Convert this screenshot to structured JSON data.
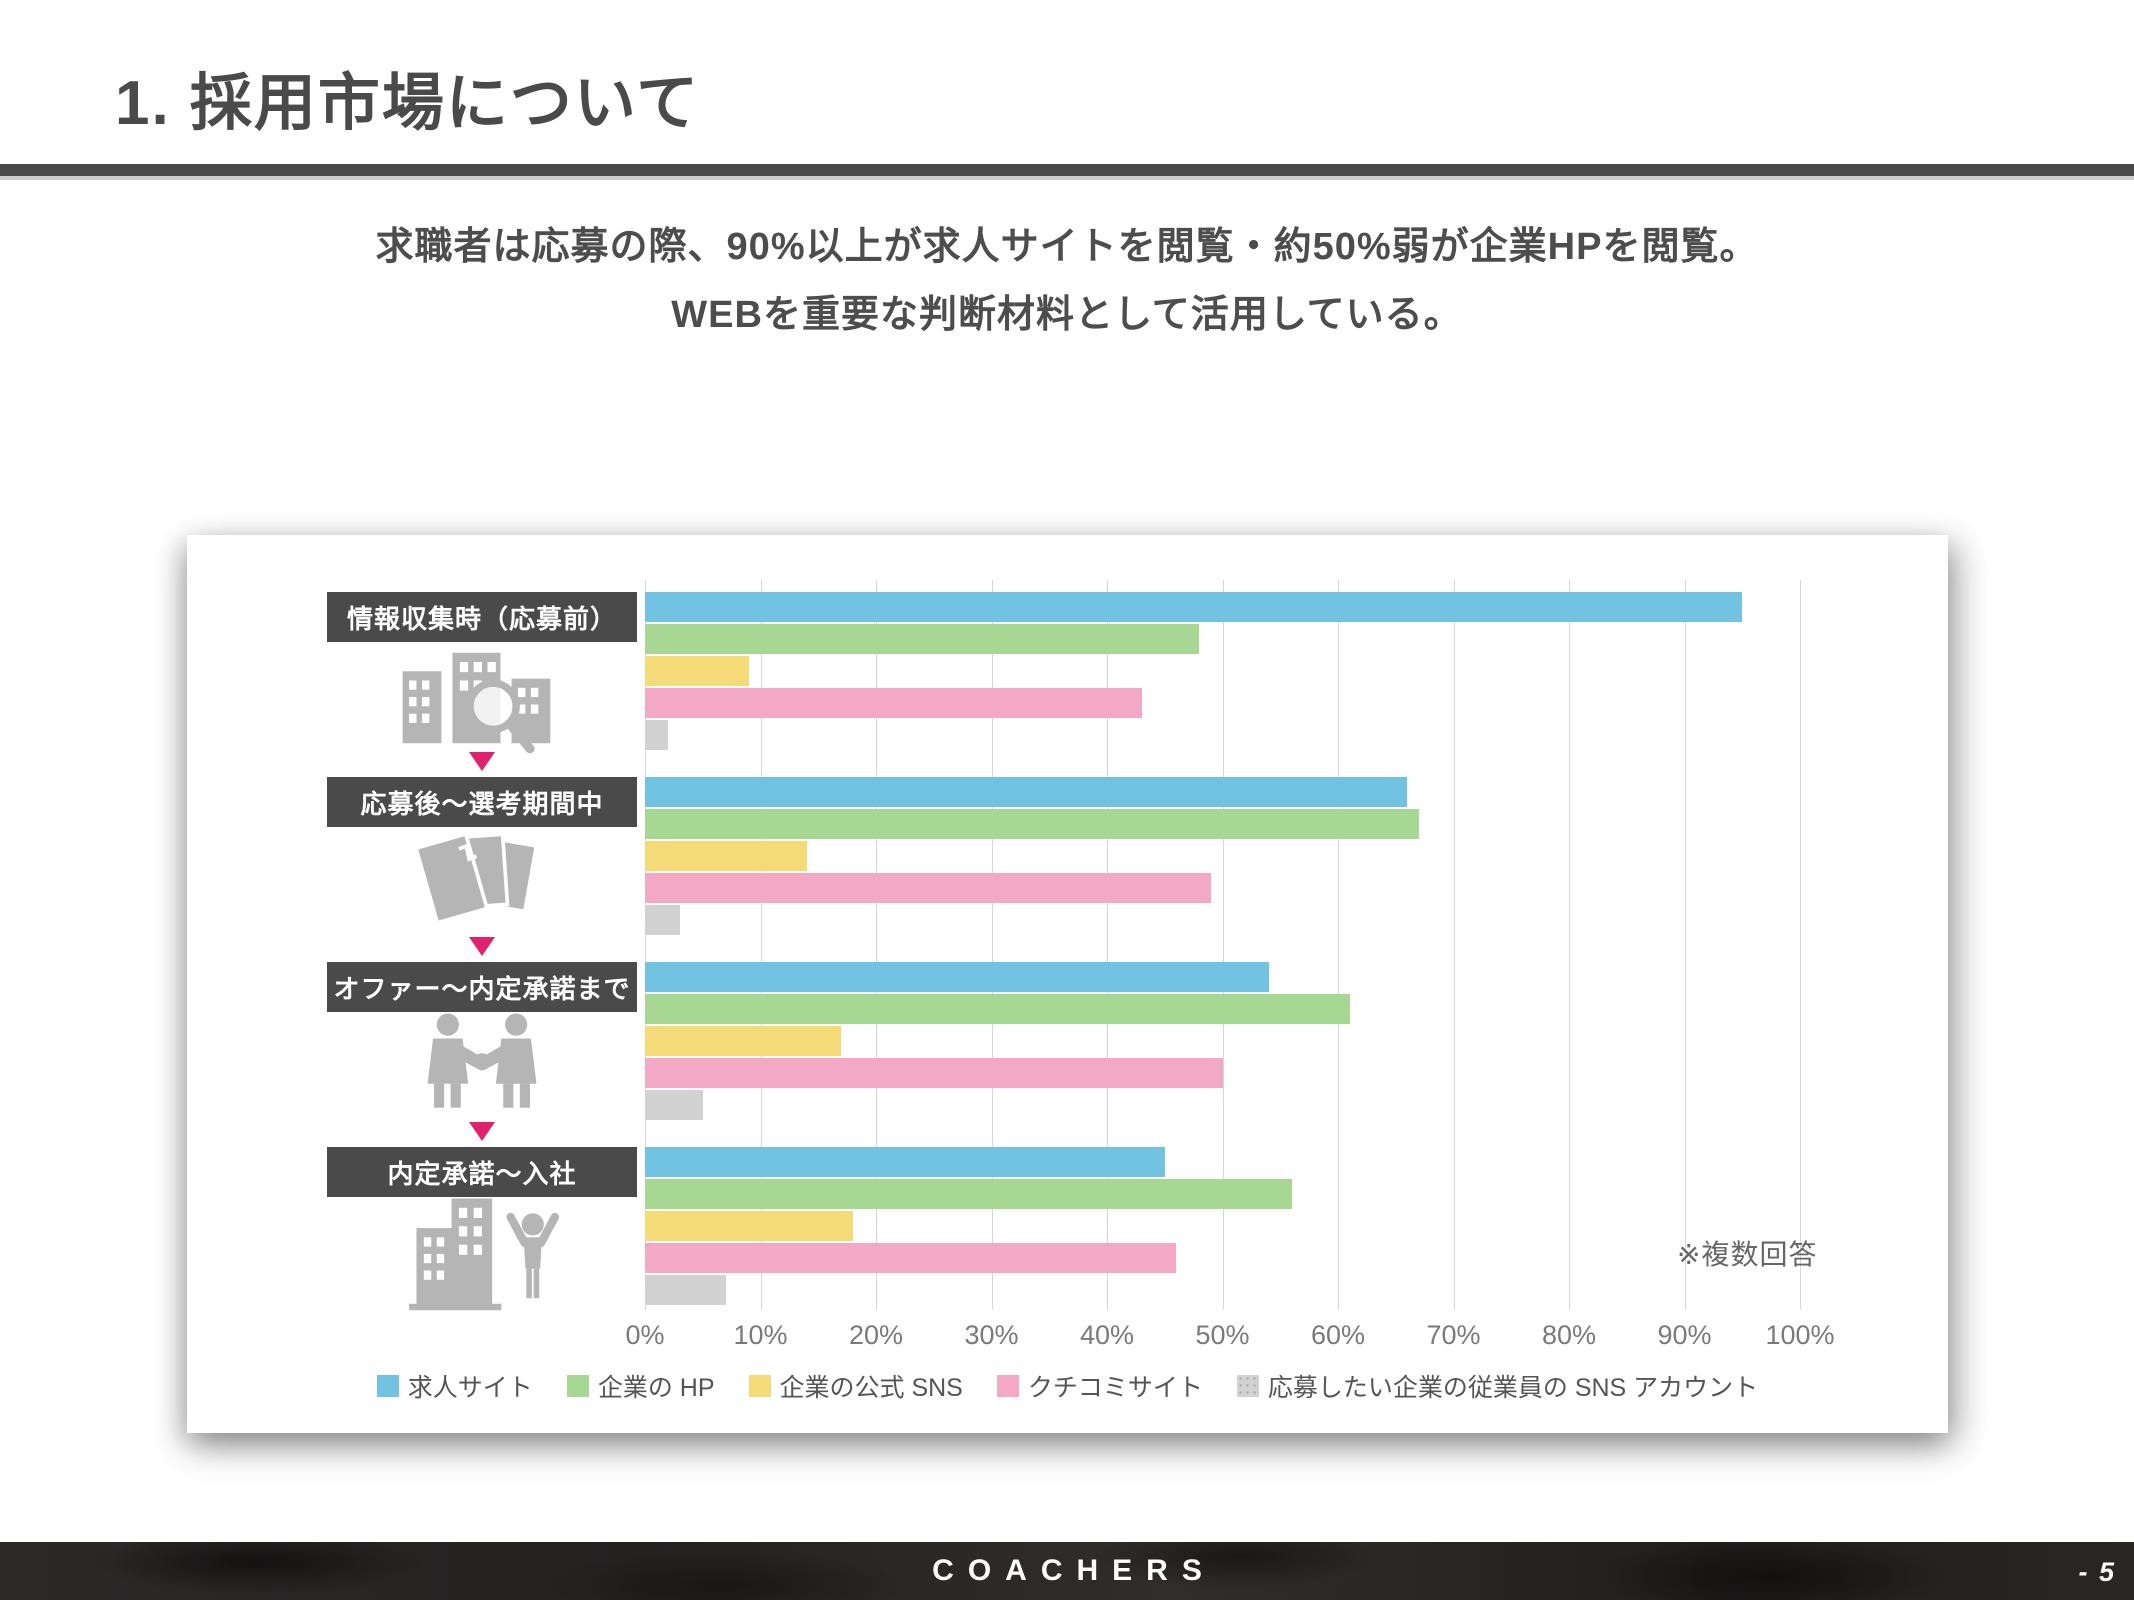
{
  "header": {
    "title": "1. 採用市場について"
  },
  "subtitle": {
    "line1": "求職者は応募の際、90%以上が求人サイトを閲覧・約50%弱が企業HPを閲覧。",
    "line2": "WEBを重要な判断材料として活用している。"
  },
  "chart_data": {
    "type": "bar",
    "orientation": "horizontal",
    "title": "",
    "xlabel": "",
    "ylabel": "",
    "xlim": [
      0,
      100
    ],
    "grid": true,
    "legend_position": "bottom",
    "note": "※複数回答",
    "axis_ticks": [
      "0%",
      "10%",
      "20%",
      "30%",
      "40%",
      "50%",
      "60%",
      "70%",
      "80%",
      "90%",
      "100%"
    ],
    "categories": [
      {
        "label": "情報収集時（応募前）",
        "icon": "buildings-search-icon"
      },
      {
        "label": "応募後～選考期間中",
        "icon": "documents-icon"
      },
      {
        "label": "オファー～内定承諾まで",
        "icon": "handshake-icon"
      },
      {
        "label": "内定承諾～入社",
        "icon": "building-person-icon"
      }
    ],
    "series": [
      {
        "name": "求人サイト",
        "color": "#72c3e1",
        "values": [
          95,
          66,
          54,
          45
        ]
      },
      {
        "name": "企業の HP",
        "color": "#a6d893",
        "values": [
          48,
          67,
          61,
          56
        ]
      },
      {
        "name": "企業の公式 SNS",
        "color": "#f4db78",
        "values": [
          9,
          14,
          17,
          18
        ]
      },
      {
        "name": "クチコミサイト",
        "color": "#f3a9c6",
        "values": [
          43,
          49,
          50,
          46
        ]
      },
      {
        "name": "応募したい企業の従業員の SNS アカウント",
        "color": "#d2d2d2",
        "pattern": "dotted",
        "values": [
          2,
          3,
          5,
          7
        ]
      }
    ],
    "flow_arrow_color": "#e0216e",
    "category_label_bg": "#4a4a4a",
    "icon_color": "#b5b5b5"
  },
  "footer": {
    "brand": "COACHERS",
    "page": "- 5"
  }
}
